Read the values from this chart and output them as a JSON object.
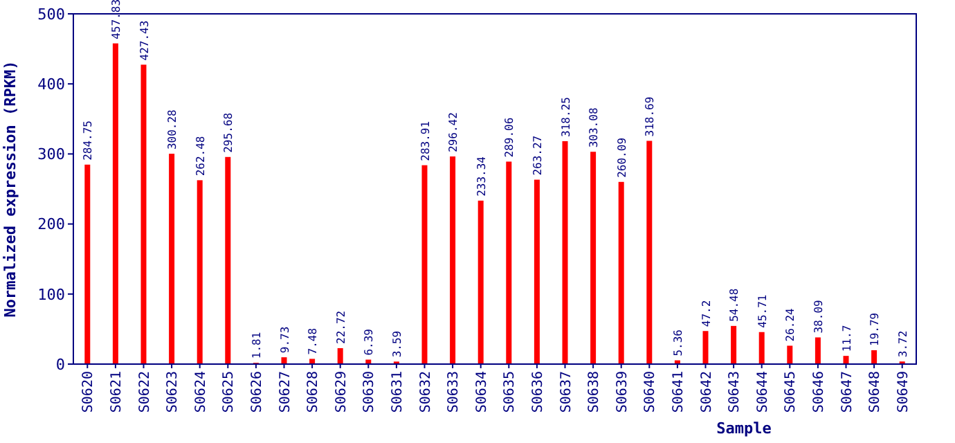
{
  "chart_data": {
    "type": "bar",
    "xlabel": "Sample",
    "ylabel": "Normalized expression (RPKM)",
    "categories": [
      "S0620",
      "S0621",
      "S0622",
      "S0623",
      "S0624",
      "S0625",
      "S0626",
      "S0627",
      "S0628",
      "S0629",
      "S0630",
      "S0631",
      "S0632",
      "S0633",
      "S0634",
      "S0635",
      "S0636",
      "S0637",
      "S0638",
      "S0639",
      "S0640",
      "S0641",
      "S0642",
      "S0643",
      "S0644",
      "S0645",
      "S0646",
      "S0647",
      "S0648",
      "S0649"
    ],
    "values": [
      284.75,
      457.83,
      427.43,
      300.28,
      262.48,
      295.68,
      1.81,
      9.73,
      7.48,
      22.72,
      6.39,
      3.59,
      283.91,
      296.42,
      233.34,
      289.06,
      263.27,
      318.25,
      303.08,
      260.09,
      318.69,
      5.36,
      47.2,
      54.48,
      45.71,
      26.24,
      38.09,
      11.7,
      19.79,
      3.72
    ],
    "color": "#ff0000",
    "ylim": [
      0,
      500
    ],
    "yticks": [
      0,
      100,
      200,
      300,
      400,
      500
    ],
    "data_labels": true,
    "grid": false
  }
}
